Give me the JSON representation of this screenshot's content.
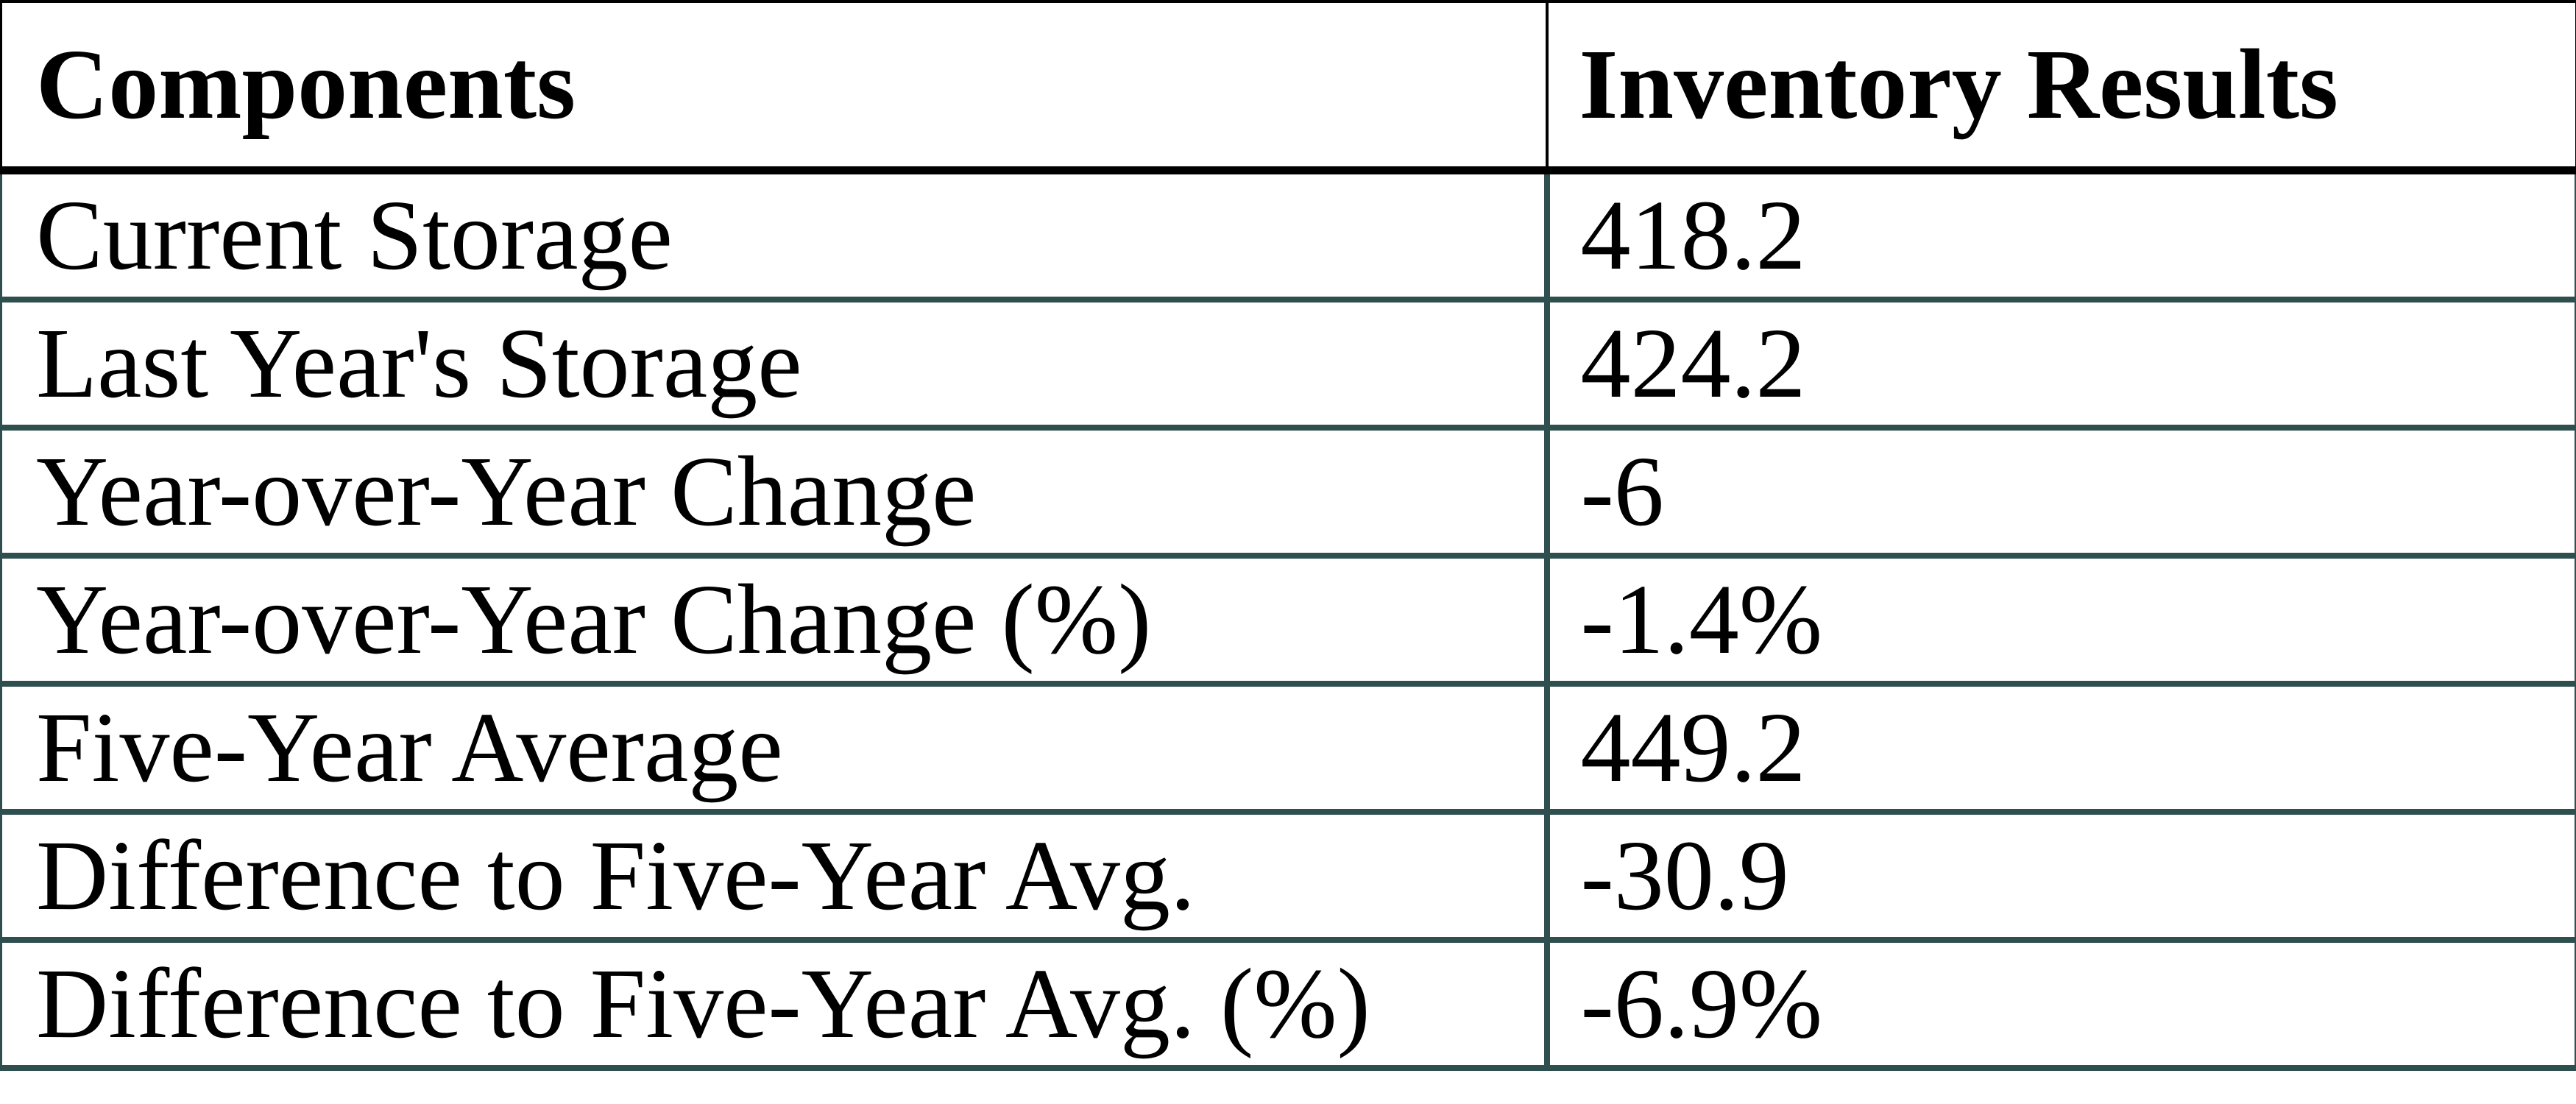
{
  "chart_data": {
    "type": "table",
    "columns": [
      "Components",
      "Inventory Results"
    ],
    "rows": [
      {
        "label": "Current Storage",
        "value": "418.2"
      },
      {
        "label": "Last Year's Storage",
        "value": "424.2"
      },
      {
        "label": "Year-over-Year Change",
        "value": "-6"
      },
      {
        "label": "Year-over-Year Change (%)",
        "value": "-1.4%"
      },
      {
        "label": "Five-Year Average",
        "value": "449.2"
      },
      {
        "label": "Difference to Five-Year Avg.",
        "value": "-30.9"
      },
      {
        "label": "Difference to Five-Year Avg. (%)",
        "value": "-6.9%"
      }
    ]
  },
  "colors": {
    "background": "#FFFFFF",
    "text": "#000000",
    "header_border": "#000000",
    "body_border": "#2F4F4F"
  }
}
